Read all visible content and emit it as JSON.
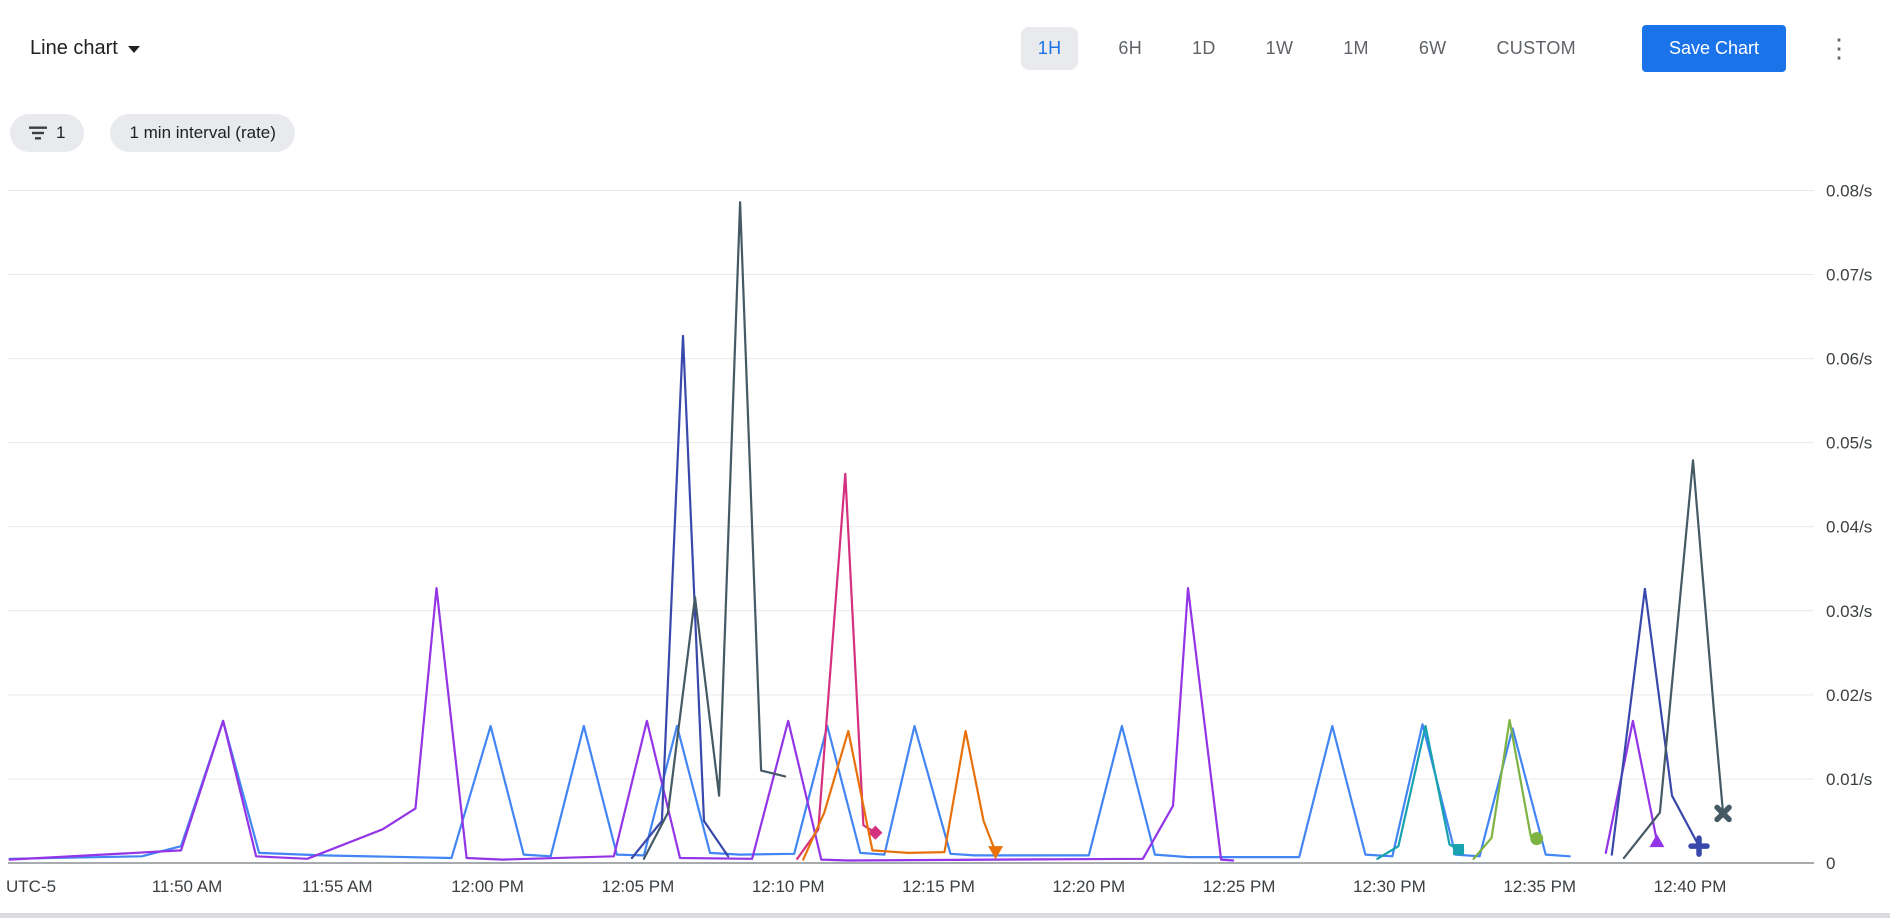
{
  "header": {
    "chart_type_label": "Line chart",
    "time_ranges": [
      "1H",
      "6H",
      "1D",
      "1W",
      "1M",
      "6W",
      "CUSTOM"
    ],
    "selected_range": "1H",
    "save_button_label": "Save Chart",
    "more_options_glyph": "⋮"
  },
  "filters": {
    "filter_chip_count": "1",
    "interval_chip_label": "1 min interval (rate)"
  },
  "colors": {
    "accent_blue": "#1a73e8",
    "selected_range_bg": "#e8eaed",
    "chip_bg": "#e8eaed",
    "toolbar_text": "#5f6368",
    "axis_text": "#3c4043",
    "gridline": "#e9e9e9",
    "zero_line": "#8a8f94"
  },
  "chart_data": {
    "type": "line",
    "title": "",
    "xlabel": "",
    "ylabel": "",
    "timezone_label": "UTC-5",
    "ylim": [
      0,
      0.08
    ],
    "y_unit": "/s",
    "grid": "horizontal",
    "legend": "none",
    "x_unit_note": "m = minutes after 11:45 AM (UTC-5)",
    "y_ticks": [
      {
        "value": 0.08,
        "label": "0.08/s"
      },
      {
        "value": 0.07,
        "label": "0.07/s"
      },
      {
        "value": 0.06,
        "label": "0.06/s"
      },
      {
        "value": 0.05,
        "label": "0.05/s"
      },
      {
        "value": 0.04,
        "label": "0.04/s"
      },
      {
        "value": 0.03,
        "label": "0.03/s"
      },
      {
        "value": 0.02,
        "label": "0.02/s"
      },
      {
        "value": 0.01,
        "label": "0.01/s"
      },
      {
        "value": 0,
        "label": "0"
      }
    ],
    "x_ticks": [
      {
        "m": 5,
        "label": "11:50 AM"
      },
      {
        "m": 10,
        "label": "11:55 AM"
      },
      {
        "m": 15,
        "label": "12:00 PM"
      },
      {
        "m": 20,
        "label": "12:05 PM"
      },
      {
        "m": 25,
        "label": "12:10 PM"
      },
      {
        "m": 30,
        "label": "12:15 PM"
      },
      {
        "m": 35,
        "label": "12:20 PM"
      },
      {
        "m": 40,
        "label": "12:25 PM"
      },
      {
        "m": 45,
        "label": "12:30 PM"
      },
      {
        "m": 50,
        "label": "12:35 PM"
      },
      {
        "m": 55,
        "label": "12:40 PM"
      }
    ],
    "series": [
      {
        "name": "blue",
        "color": "#4285f4",
        "marker": "none",
        "segments": [
          [
            [
              -0.9,
              0.0005
            ],
            [
              3.5,
              0.0008
            ],
            [
              4.8,
              0.002
            ],
            [
              6.2,
              0.0169
            ],
            [
              7.4,
              0.0012
            ],
            [
              9.5,
              0.0009
            ],
            [
              13.8,
              0.0006
            ],
            [
              15.1,
              0.0163
            ],
            [
              16.2,
              0.001
            ],
            [
              17.1,
              0.0008
            ],
            [
              18.2,
              0.0163
            ],
            [
              19.3,
              0.001
            ],
            [
              20.2,
              0.0009
            ],
            [
              21.3,
              0.0163
            ],
            [
              22.4,
              0.0012
            ],
            [
              23.4,
              0.001
            ],
            [
              25.2,
              0.0011
            ],
            [
              26.3,
              0.0163
            ],
            [
              27.4,
              0.0012
            ],
            [
              28.2,
              0.001
            ],
            [
              29.2,
              0.0163
            ],
            [
              30.4,
              0.0011
            ],
            [
              31.2,
              0.0009
            ],
            [
              35,
              0.0009
            ],
            [
              36.1,
              0.0163
            ],
            [
              37.2,
              0.001
            ],
            [
              38.3,
              0.0007
            ],
            [
              42,
              0.0007
            ],
            [
              43.1,
              0.0163
            ],
            [
              44.2,
              0.001
            ],
            [
              45.1,
              0.0008
            ],
            [
              46.1,
              0.0165
            ],
            [
              47.2,
              0.001
            ],
            [
              48,
              0.0008
            ],
            [
              49.1,
              0.016
            ],
            [
              50.2,
              0.001
            ],
            [
              51,
              0.0008
            ]
          ]
        ]
      },
      {
        "name": "purple",
        "color": "#9334e6",
        "marker": "triangle-up",
        "segments": [
          [
            [
              -0.9,
              0.0004
            ],
            [
              4.8,
              0.0015
            ],
            [
              6.2,
              0.0169
            ],
            [
              7.3,
              0.0008
            ],
            [
              9,
              0.0005
            ],
            [
              11.5,
              0.004
            ],
            [
              12.6,
              0.0065
            ],
            [
              13.3,
              0.0327
            ],
            [
              14.3,
              0.0006
            ],
            [
              15.5,
              0.0004
            ],
            [
              19.2,
              0.0008
            ],
            [
              20.3,
              0.0169
            ],
            [
              21.4,
              0.0006
            ],
            [
              23.8,
              0.0005
            ],
            [
              25,
              0.0169
            ],
            [
              26.1,
              0.0004
            ],
            [
              27,
              0.0003
            ],
            [
              36.8,
              0.0005
            ],
            [
              37.8,
              0.0068
            ],
            [
              38.3,
              0.0327
            ],
            [
              39.4,
              0.0004
            ],
            [
              39.8,
              0.0003
            ]
          ],
          [
            [
              52.2,
              0.0012
            ],
            [
              53.1,
              0.0169
            ],
            [
              53.9,
              0.0026
            ]
          ]
        ]
      },
      {
        "name": "indigo",
        "color": "#3949ab",
        "marker": "plus",
        "segments": [
          [
            [
              19.8,
              0.0006
            ],
            [
              20.8,
              0.005
            ],
            [
              21.5,
              0.0627
            ],
            [
              22.2,
              0.005
            ],
            [
              23,
              0.0008
            ]
          ],
          [
            [
              52.4,
              0.001
            ],
            [
              53.5,
              0.0326
            ],
            [
              54.4,
              0.008
            ],
            [
              55.3,
              0.002
            ]
          ]
        ]
      },
      {
        "name": "slate",
        "color": "#455a64",
        "marker": "x",
        "segments": [
          [
            [
              20.2,
              0.0005
            ],
            [
              21,
              0.006
            ],
            [
              21.9,
              0.0316
            ],
            [
              22.7,
              0.008
            ],
            [
              23.4,
              0.0786
            ],
            [
              24.1,
              0.011
            ],
            [
              24.9,
              0.0103
            ]
          ],
          [
            [
              52.8,
              0.0006
            ],
            [
              54,
              0.006
            ],
            [
              55.1,
              0.0479
            ],
            [
              55.8,
              0.018
            ],
            [
              56.1,
              0.0059
            ]
          ]
        ]
      },
      {
        "name": "magenta",
        "color": "#d5317f",
        "marker": "diamond",
        "segments": [
          [
            [
              25.3,
              0.0005
            ],
            [
              26,
              0.004
            ],
            [
              26.9,
              0.0463
            ],
            [
              27.5,
              0.0045
            ],
            [
              27.9,
              0.0036
            ]
          ]
        ]
      },
      {
        "name": "orange",
        "color": "#e8710a",
        "marker": "triangle-down",
        "segments": [
          [
            [
              25.5,
              0.0004
            ],
            [
              26.2,
              0.006
            ],
            [
              27,
              0.0157
            ],
            [
              27.8,
              0.0015
            ],
            [
              29,
              0.0012
            ],
            [
              30.2,
              0.0013
            ],
            [
              30.9,
              0.0157
            ],
            [
              31.5,
              0.005
            ],
            [
              31.9,
              0.0013
            ]
          ]
        ]
      },
      {
        "name": "teal",
        "color": "#17a2b0",
        "marker": "square",
        "segments": [
          [
            [
              44.6,
              0.0005
            ],
            [
              45.3,
              0.002
            ],
            [
              46.2,
              0.0163
            ],
            [
              47,
              0.0022
            ],
            [
              47.3,
              0.0016
            ]
          ]
        ]
      },
      {
        "name": "green",
        "color": "#7cb342",
        "marker": "circle",
        "segments": [
          [
            [
              47.8,
              0.0005
            ],
            [
              48.4,
              0.003
            ],
            [
              49,
              0.017
            ],
            [
              49.7,
              0.0032
            ],
            [
              49.9,
              0.0029
            ]
          ]
        ]
      }
    ]
  }
}
